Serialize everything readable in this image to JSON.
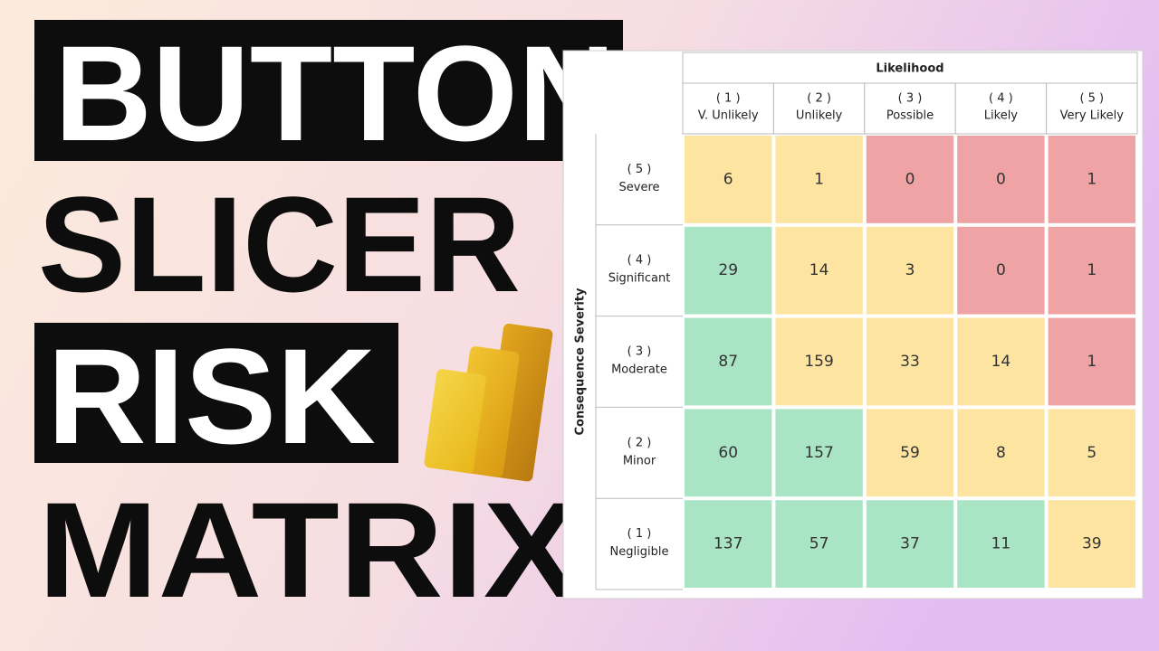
{
  "title_words": [
    "BUTTON",
    "SLICER",
    "RISK",
    "MATRIX"
  ],
  "matrix": {
    "column_header": "Likelihood",
    "row_header": "Consequence Severity",
    "columns": [
      {
        "number": "( 1 )",
        "label": "V. Unlikely"
      },
      {
        "number": "( 2 )",
        "label": "Unlikely"
      },
      {
        "number": "( 3 )",
        "label": "Possible"
      },
      {
        "number": "( 4 )",
        "label": "Likely"
      },
      {
        "number": "( 5 )",
        "label": "Very Likely"
      }
    ],
    "rows": [
      {
        "number": "( 5 )",
        "label": "Severe",
        "cells": [
          {
            "value": 6,
            "color": "#fde4a0"
          },
          {
            "value": 1,
            "color": "#fde4a0"
          },
          {
            "value": 0,
            "color": "#efa3a4"
          },
          {
            "value": 0,
            "color": "#efa3a4"
          },
          {
            "value": 1,
            "color": "#efa3a4"
          }
        ]
      },
      {
        "number": "( 4 )",
        "label": "Significant",
        "cells": [
          {
            "value": 29,
            "color": "#a9e4c5"
          },
          {
            "value": 14,
            "color": "#fde4a0"
          },
          {
            "value": 3,
            "color": "#fde4a0"
          },
          {
            "value": 0,
            "color": "#efa3a4"
          },
          {
            "value": 1,
            "color": "#efa3a4"
          }
        ]
      },
      {
        "number": "( 3 )",
        "label": "Moderate",
        "cells": [
          {
            "value": 87,
            "color": "#a9e4c5"
          },
          {
            "value": 159,
            "color": "#fde4a0"
          },
          {
            "value": 33,
            "color": "#fde4a0"
          },
          {
            "value": 14,
            "color": "#fde4a0"
          },
          {
            "value": 1,
            "color": "#efa3a4"
          }
        ]
      },
      {
        "number": "( 2 )",
        "label": "Minor",
        "cells": [
          {
            "value": 60,
            "color": "#a9e4c5"
          },
          {
            "value": 157,
            "color": "#a9e4c5"
          },
          {
            "value": 59,
            "color": "#fde4a0"
          },
          {
            "value": 8,
            "color": "#fde4a0"
          },
          {
            "value": 5,
            "color": "#fde4a0"
          }
        ]
      },
      {
        "number": "( 1 )",
        "label": "Negligible",
        "cells": [
          {
            "value": 137,
            "color": "#a9e4c5"
          },
          {
            "value": 57,
            "color": "#a9e4c5"
          },
          {
            "value": 37,
            "color": "#a9e4c5"
          },
          {
            "value": 11,
            "color": "#a9e4c5"
          },
          {
            "value": 39,
            "color": "#fde4a0"
          }
        ]
      }
    ]
  }
}
